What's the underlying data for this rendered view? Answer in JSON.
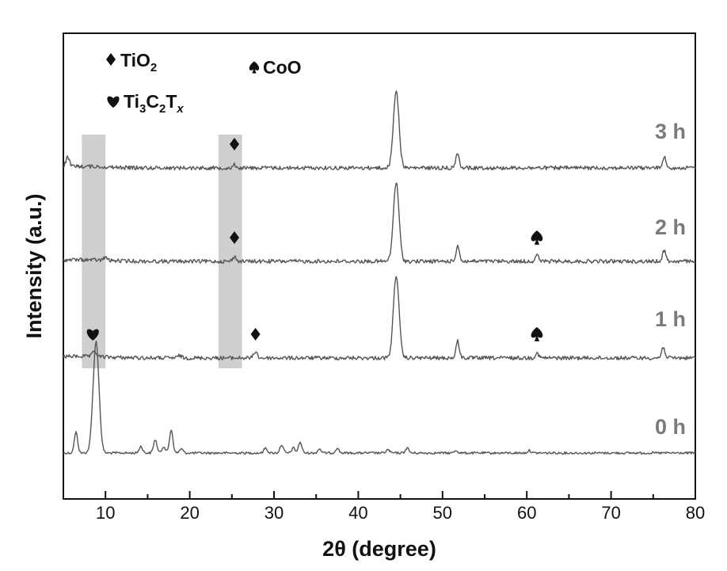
{
  "chart_data": {
    "type": "line",
    "title": "",
    "xlabel": "2θ (degree)",
    "ylabel": "Intensity (a.u.)",
    "xlim": [
      5,
      80
    ],
    "xticks": [
      10,
      20,
      30,
      40,
      50,
      60,
      70,
      80
    ],
    "grid": false,
    "legend": {
      "placement": "top-left",
      "entries": [
        {
          "symbol": "diamond",
          "text": "TiO",
          "sub": "2"
        },
        {
          "symbol": "spade",
          "text": "CoO",
          "sub": ""
        },
        {
          "symbol": "heart",
          "formula": [
            [
              "Ti",
              ""
            ],
            [
              "3",
              "sub"
            ],
            [
              "C",
              ""
            ],
            [
              "2",
              "sub"
            ],
            [
              "T",
              ""
            ],
            [
              "x",
              "sub-italic"
            ]
          ]
        }
      ]
    },
    "highlight_bands": [
      [
        7.2,
        10.0
      ],
      [
        23.4,
        26.2
      ]
    ],
    "series": [
      {
        "name": "0 h",
        "peaks": [
          [
            6.5,
            25
          ],
          [
            8.7,
            42
          ],
          [
            8.95,
            100
          ],
          [
            14.2,
            8
          ],
          [
            15.9,
            16
          ],
          [
            16.9,
            8
          ],
          [
            17.8,
            28
          ],
          [
            19.0,
            5
          ],
          [
            29.0,
            6
          ],
          [
            30.9,
            10
          ],
          [
            32.3,
            6
          ],
          [
            33.1,
            13
          ],
          [
            35.4,
            5
          ],
          [
            37.5,
            6
          ],
          [
            43.5,
            4
          ],
          [
            45.8,
            6
          ],
          [
            51.6,
            3
          ],
          [
            60.3,
            3
          ]
        ]
      },
      {
        "name": "1 h",
        "peaks": [
          [
            8.7,
            7
          ],
          [
            18.8,
            3
          ],
          [
            27.8,
            8
          ],
          [
            44.5,
            100
          ],
          [
            51.8,
            20
          ],
          [
            61.2,
            6
          ],
          [
            76.2,
            13
          ]
        ]
      },
      {
        "name": "2 h",
        "peaks": [
          [
            10.0,
            4
          ],
          [
            25.3,
            6
          ],
          [
            44.5,
            100
          ],
          [
            51.8,
            20
          ],
          [
            61.2,
            8
          ],
          [
            76.3,
            14
          ]
        ]
      },
      {
        "name": "3 h",
        "peaks": [
          [
            5.5,
            12
          ],
          [
            25.3,
            4
          ],
          [
            44.5,
            100
          ],
          [
            51.8,
            20
          ],
          [
            76.3,
            14
          ]
        ]
      }
    ],
    "peak_markers": [
      {
        "symbol": "heart",
        "series": "1 h",
        "x": 8.5
      },
      {
        "symbol": "diamond",
        "series": "1 h",
        "x": 27.8
      },
      {
        "symbol": "spade",
        "series": "1 h",
        "x": 61.2
      },
      {
        "symbol": "diamond",
        "series": "2 h",
        "x": 25.3
      },
      {
        "symbol": "spade",
        "series": "2 h",
        "x": 61.2
      },
      {
        "symbol": "diamond",
        "series": "3 h",
        "x": 25.3
      }
    ]
  }
}
